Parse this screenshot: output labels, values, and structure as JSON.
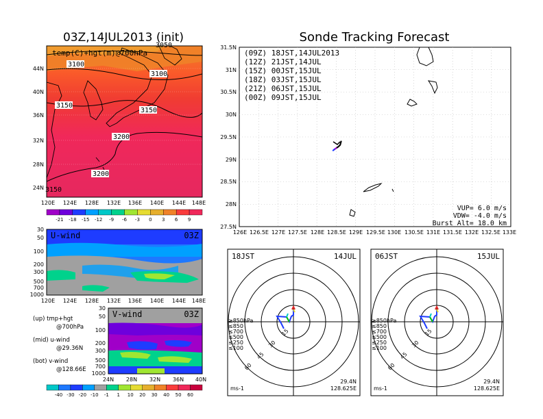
{
  "left_panel": {
    "title": "03Z,14JUL2013 (init)",
    "field_label": "temp(C)+hgt(m)@700hPa",
    "top_contour": "3050",
    "contour_labels": [
      "3100",
      "3100",
      "3150",
      "3150",
      "3200",
      "3200",
      "3150"
    ],
    "lat_ticks": [
      "44N",
      "40N",
      "36N",
      "32N",
      "28N",
      "24N"
    ],
    "lon_ticks": [
      "120E",
      "124E",
      "128E",
      "132E",
      "136E",
      "140E",
      "144E",
      "148E"
    ],
    "temp_colorbar": {
      "labels": [
        "-21",
        "-18",
        "-15",
        "-12",
        "-9",
        "-6",
        "-3",
        "0",
        "3",
        "6",
        "9"
      ],
      "colors": [
        "#a000c8",
        "#6e00dc",
        "#1e3cff",
        "#00a0ff",
        "#00c8c8",
        "#00d28c",
        "#a0e632",
        "#e6dc32",
        "#e6af2d",
        "#f08228",
        "#fa3c3c",
        "#f0285a"
      ]
    }
  },
  "u_wind_panel": {
    "title": "U-wind",
    "time": "03Z",
    "y_ticks": [
      "30",
      "50",
      "100",
      "200",
      "300",
      "500",
      "700",
      "1000"
    ],
    "x_ticks": [
      "120E",
      "124E",
      "128E",
      "132E",
      "136E",
      "140E",
      "144E",
      "148E"
    ]
  },
  "v_wind_panel": {
    "title": "V-wind",
    "time": "03Z",
    "y_ticks": [
      "30",
      "50",
      "100",
      "200",
      "300",
      "500",
      "700",
      "1000"
    ],
    "x_ticks": [
      "24N",
      "28N",
      "32N",
      "36N",
      "40N"
    ]
  },
  "notes": {
    "up": "(up) tmp+hgt",
    "up2": "@700hPa",
    "mid": "(mid) u-wind",
    "mid2": "@29.36N",
    "bot": "(bot) v-wind",
    "bot2": "@128.66E"
  },
  "wind_colorbar": {
    "labels": [
      "-40",
      "-30",
      "-20",
      "-10",
      "-1",
      "1",
      "10",
      "20",
      "30",
      "40",
      "50",
      "60"
    ],
    "colors": [
      "#00c8c8",
      "#1e78ff",
      "#1e3cff",
      "#00a0ff",
      "#a0a0a0",
      "#00d28c",
      "#a0e632",
      "#e6dc32",
      "#e6af2d",
      "#f08228",
      "#fa3c3c",
      "#f0285a",
      "#c8003c"
    ]
  },
  "sonde_panel": {
    "title": "Sonde Tracking Forecast",
    "legend": [
      {
        "text": "(09Z)  18JST,14JUL2013",
        "color": "#000000"
      },
      {
        "text": "(12Z)  21JST,14JUL",
        "color": "#a000c8"
      },
      {
        "text": "(15Z)  00JST,15JUL",
        "color": "#1e3cff"
      },
      {
        "text": "(18Z)  03JST,15JUL",
        "color": "#00a000"
      },
      {
        "text": "(21Z)  06JST,15JUL",
        "color": "#e6dc32"
      },
      {
        "text": "(00Z)  09JST,15JUL",
        "color": "#f08228"
      }
    ],
    "lat_ticks": [
      "31.5N",
      "31N",
      "30.5N",
      "30N",
      "29.5N",
      "29N",
      "28.5N",
      "28N",
      "27.5N"
    ],
    "lon_ticks": [
      "126E",
      "126.5E",
      "127E",
      "127.5E",
      "128E",
      "128.5E",
      "129E",
      "129.5E",
      "130E",
      "130.5E",
      "131E",
      "131.5E",
      "132E",
      "132.5E",
      "133E"
    ],
    "vup": "VUP= 6.0 m/s",
    "vdw": "VDW= -4.0 m/s",
    "burst": "Burst Alt= 18.0 km"
  },
  "polar_panels": [
    {
      "left": "18JST",
      "right": "14JUL",
      "lat": "29.4N",
      "lon": "128.625E",
      "unit": "ms-1"
    },
    {
      "left": "06JST",
      "right": "15JUL",
      "lat": "29.4N",
      "lon": "128.625E",
      "unit": "ms-1"
    }
  ],
  "polar_rings": [
    "15",
    "30",
    "45",
    "60"
  ],
  "polar_legend": [
    {
      "text": "≥850hPa",
      "color": "#e62828"
    },
    {
      "text": "≤850",
      "color": "#f08228"
    },
    {
      "text": "≤700",
      "color": "#e6dc32"
    },
    {
      "text": "≤500",
      "color": "#00c800"
    },
    {
      "text": "≤250",
      "color": "#00c8c8"
    },
    {
      "text": "≤100",
      "color": "#1e3cff"
    }
  ],
  "chart_data": {
    "type": "line",
    "title": "Sonde Tracking Forecast",
    "xlim": [
      126,
      133
    ],
    "ylim": [
      27.5,
      31.5
    ],
    "series": [
      {
        "name": "(09Z) 18JST,14JUL2013",
        "x": [
          128.625,
          128.6,
          128.55,
          128.5
        ],
        "y": [
          29.4,
          29.32,
          29.28,
          29.25
        ]
      },
      {
        "name": "(12Z) 21JST,14JUL",
        "x": [
          128.5,
          128.45
        ],
        "y": [
          29.25,
          29.22
        ]
      },
      {
        "name": "(15Z) 00JST,15JUL",
        "x": [
          128.45,
          128.42
        ],
        "y": [
          29.22,
          29.2
        ]
      }
    ]
  }
}
